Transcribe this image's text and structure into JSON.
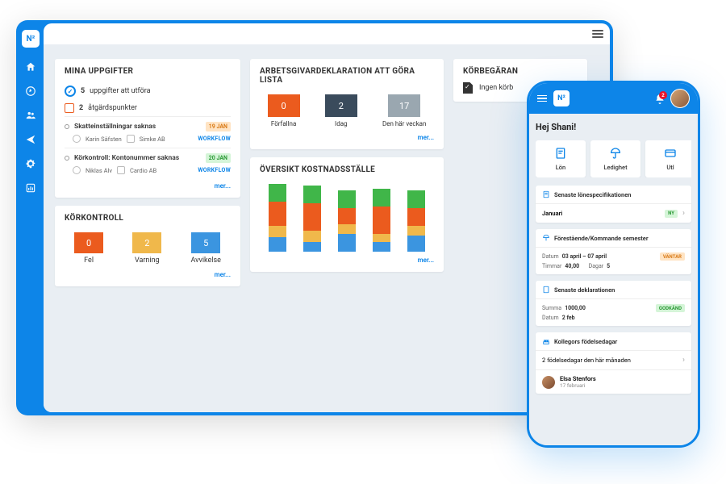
{
  "colors": {
    "brand": "#0d85e8",
    "orange": "#eb5b1e",
    "amber": "#f0b84b",
    "blue": "#3b95e0",
    "green": "#40b649",
    "slate": "#3a4b5c",
    "lightBlue": "#bfe4ff",
    "badgeOrangeBg": "#ffe4c4",
    "badgeOrangeFg": "#d97a16",
    "badgeGreenBg": "#d5f5d8",
    "badgeGreenFg": "#2c9a36"
  },
  "desktop": {
    "logo": "N²",
    "statusDots": [
      {
        "color": "#f0b84b",
        "glyph": "✓"
      },
      {
        "color": "#bfe4ff",
        "glyph": ""
      }
    ],
    "tasks": {
      "title": "MINA UPPGIFTER",
      "countLine": {
        "count": "5",
        "text": "uppgifter att utföra"
      },
      "actionsLine": {
        "count": "2",
        "text": "åtgärdspunkter"
      },
      "items": [
        {
          "title": "Skatteinställningar saknas",
          "date": "19 JAN",
          "dateColor": "orange",
          "person": "Karin Säfsten",
          "org": "Simke AB",
          "link": "WORKFLOW"
        },
        {
          "title": "Körkontroll: Kontonummer saknas",
          "date": "20 JAN",
          "dateColor": "green",
          "person": "Niklas Alv",
          "org": "Cardio AB",
          "link": "WORKFLOW"
        }
      ],
      "more": "mer..."
    },
    "runcheck": {
      "title": "KÖRKONTROLL",
      "tiles": [
        {
          "value": "0",
          "label": "Fel",
          "color": "#eb5b1e"
        },
        {
          "value": "2",
          "label": "Varning",
          "color": "#f0b84b"
        },
        {
          "value": "5",
          "label": "Avvikelse",
          "color": "#3b95e0"
        }
      ],
      "more": "mer..."
    },
    "declaration": {
      "title": "ARBETSGIVARDEKLARATION ATT GÖRA LISTA",
      "tiles": [
        {
          "value": "0",
          "label": "Förfallna",
          "color": "#eb5b1e"
        },
        {
          "value": "2",
          "label": "Idag",
          "color": "#3a4b5c"
        },
        {
          "value": "17",
          "label": "Den här veckan",
          "color": "#9aa7b0"
        }
      ],
      "more": "mer..."
    },
    "overview": {
      "title": "ÖVERSIKT KOSTNADSSTÄLLE",
      "chart": {
        "type": "stacked-bar",
        "segColors": [
          "#3b95e0",
          "#f0b84b",
          "#eb5b1e",
          "#40b649"
        ],
        "bars": [
          [
            18,
            14,
            30,
            22
          ],
          [
            12,
            14,
            34,
            22
          ],
          [
            22,
            12,
            20,
            22
          ],
          [
            12,
            10,
            34,
            22
          ],
          [
            20,
            12,
            22,
            22
          ]
        ]
      },
      "more": "mer..."
    },
    "request": {
      "title": "KÖRBEGÄRAN",
      "text": "Ingen körb"
    }
  },
  "mobile": {
    "logo": "N²",
    "notifications": "2",
    "greeting": "Hej Shani!",
    "quick": [
      {
        "label": "Lön",
        "icon": "doc"
      },
      {
        "label": "Ledighet",
        "icon": "umbrella"
      },
      {
        "label": "Utl",
        "icon": "card"
      }
    ],
    "payslip": {
      "title": "Senaste lönespecifikationen",
      "month": "Januari",
      "badge": "NY"
    },
    "vacation": {
      "title": "Förestående/Kommande semester",
      "dateLabel": "Datum",
      "dateVal": "03 april – 07 april",
      "hoursLabel": "Timmar",
      "hoursVal": "40,00",
      "daysLabel": "Dagar",
      "daysVal": "5",
      "badge": "VÄNTAR"
    },
    "declaration": {
      "title": "Senaste deklarationen",
      "sumLabel": "Summa",
      "sumVal": "1000,00",
      "dateLabel": "Datum",
      "dateVal": "2 feb",
      "badge": "GODKÄND"
    },
    "birthdays": {
      "title": "Kollegors födelsedagar",
      "summary": "2 födelsedagar den här månaden",
      "name": "Elsa Stenfors",
      "date": "17 februari"
    }
  }
}
